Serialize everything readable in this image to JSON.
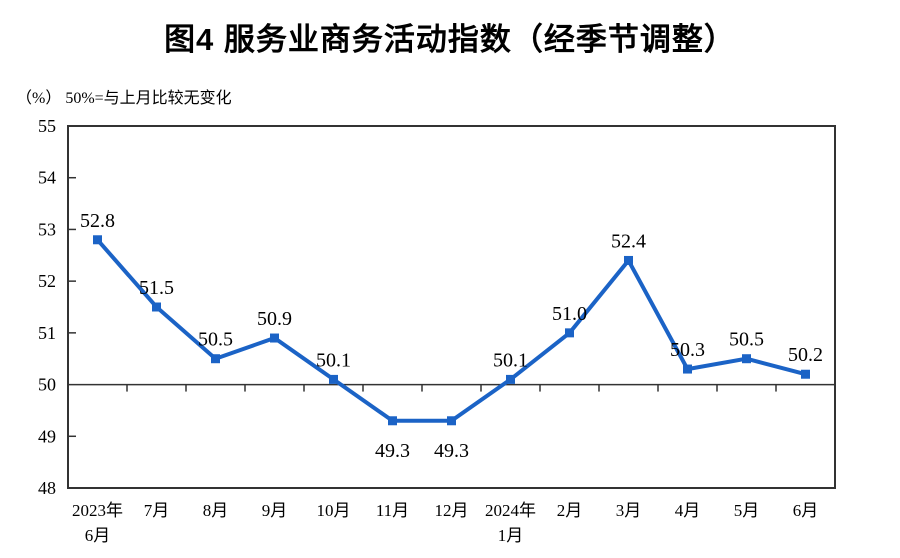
{
  "page": {
    "background_color": "#ffffff",
    "text_color": "#000000"
  },
  "chart_data": {
    "type": "line",
    "title": "图4 服务业商务活动指数（经季节调整）",
    "note": "（%） 50%=与上月比较无变化",
    "unit_label": "（%）",
    "categories": [
      "2023年6月",
      "7月",
      "8月",
      "9月",
      "10月",
      "11月",
      "12月",
      "2024年1月",
      "2月",
      "3月",
      "4月",
      "5月",
      "6月"
    ],
    "category_lines": [
      [
        "2023年",
        "6月"
      ],
      [
        "7月"
      ],
      [
        "8月"
      ],
      [
        "9月"
      ],
      [
        "10月"
      ],
      [
        "11月"
      ],
      [
        "12月"
      ],
      [
        "2024年",
        "1月"
      ],
      [
        "2月"
      ],
      [
        "3月"
      ],
      [
        "4月"
      ],
      [
        "5月"
      ],
      [
        "6月"
      ]
    ],
    "values": [
      52.8,
      51.5,
      50.5,
      50.9,
      50.1,
      49.3,
      49.3,
      50.1,
      51.0,
      52.4,
      50.3,
      50.5,
      50.2
    ],
    "point_labels": [
      "52.8",
      "51.5",
      "50.5",
      "50.9",
      "50.1",
      "49.3",
      "49.3",
      "50.1",
      "51.0",
      "52.4",
      "50.3",
      "50.5",
      "50.2"
    ],
    "label_below_indices": [
      5,
      6
    ],
    "ylim": [
      48,
      55
    ],
    "yticks": [
      48,
      49,
      50,
      51,
      52,
      53,
      54,
      55
    ],
    "baseline_value": 50,
    "grid": "off",
    "legend": "none",
    "line_color": "#1B63C6",
    "marker_shape": "square",
    "axis_color": "#333333",
    "label_color": "#000000"
  }
}
